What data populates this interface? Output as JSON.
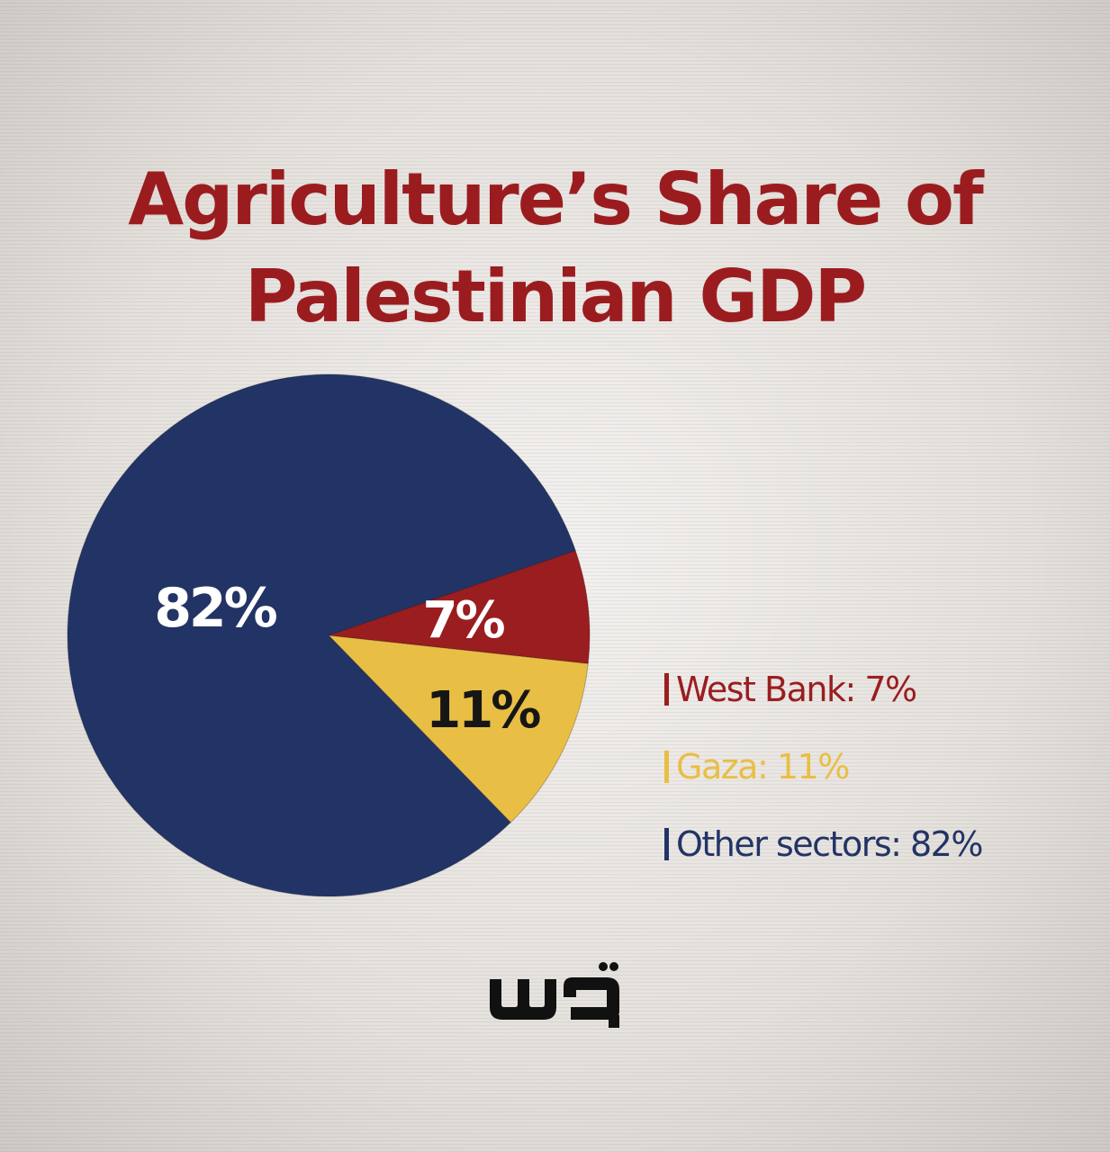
{
  "colors": {
    "west_bank": "#9a1d20",
    "gaza": "#e9be45",
    "other": "#223465",
    "title": "#9b1c1f",
    "pie_label_light": "#ffffff",
    "pie_label_dark": "#161616"
  },
  "chart_data": {
    "type": "pie",
    "title": "Agriculture’s Share of Palestinian GDP",
    "title_lines": [
      "Agriculture’s Share of",
      "Palestinian GDP"
    ],
    "slices": [
      {
        "label": "West Bank",
        "value": 7,
        "value_label": "7%",
        "legend_text": "West Bank: 7%",
        "color": "#9a1d20"
      },
      {
        "label": "Gaza",
        "value": 11,
        "value_label": "11%",
        "legend_text": "Gaza: 11%",
        "color": "#e9be45"
      },
      {
        "label": "Other sectors",
        "value": 82,
        "value_label": "82%",
        "legend_text": "Other sectors: 82%",
        "color": "#223465"
      }
    ],
    "legend_position": "right"
  },
  "logo": {
    "name": "quds-logo-icon",
    "text": "قدس"
  }
}
